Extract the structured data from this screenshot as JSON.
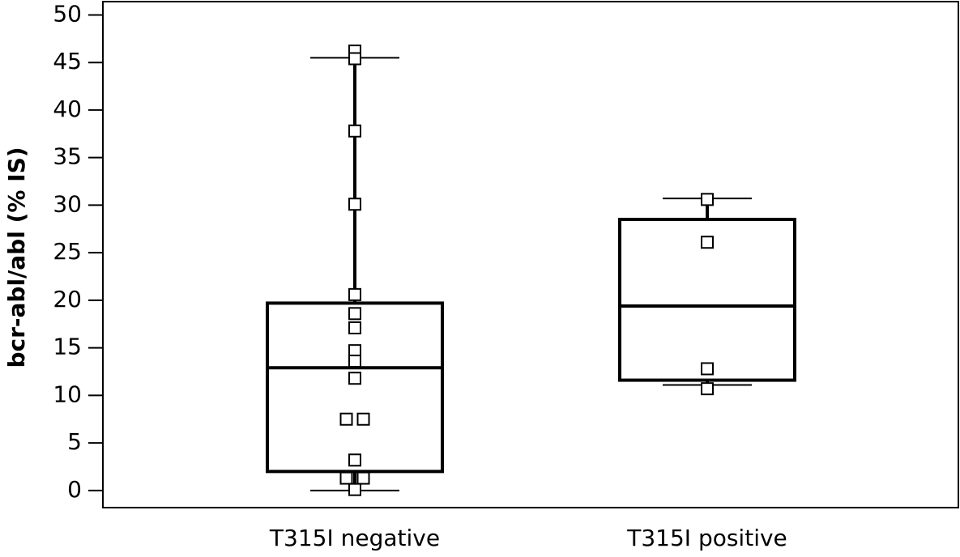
{
  "chart_data": {
    "type": "box",
    "y_label": "bcr-abl/abl (% IS)",
    "categories": [
      "T315I negative",
      "T315I positive"
    ],
    "boxes": [
      {
        "min": 0,
        "q1": 2.0,
        "median": 12.9,
        "q3": 19.7,
        "max": 45.5
      },
      {
        "min": 11.1,
        "q1": 11.6,
        "median": 19.4,
        "q3": 28.5,
        "max": 30.7
      }
    ],
    "points": [
      [
        46.2,
        45.4,
        37.8,
        30.1,
        20.6,
        18.6,
        17.1,
        14.7,
        13.6,
        11.8,
        7.5,
        7.5,
        3.2,
        1.3,
        1.3,
        0.1
      ],
      [
        30.6,
        26.1,
        12.8,
        10.7
      ]
    ],
    "ylim": [
      -1.8,
      51.4
    ],
    "yticks": [
      0,
      5,
      10,
      15,
      20,
      25,
      30,
      35,
      40,
      45,
      50
    ]
  }
}
